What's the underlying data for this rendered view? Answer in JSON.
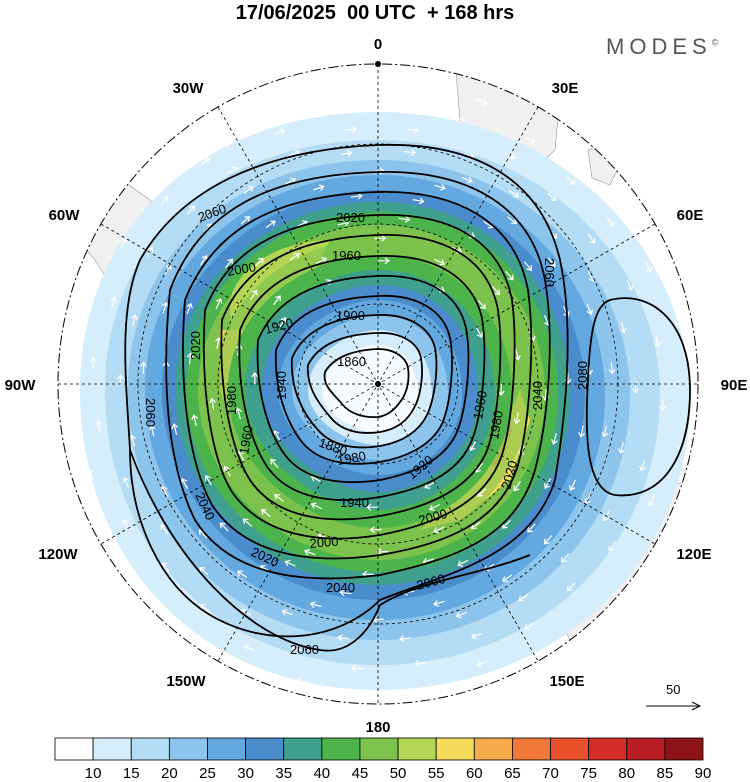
{
  "title": "17/06/2025  00 UTC  + 168 hrs",
  "brand": "MODES",
  "brand_mark": "©",
  "longitude_labels": {
    "n0": "0",
    "e30": "30E",
    "e60": "60E",
    "e90": "90E",
    "e120": "120E",
    "e150": "150E",
    "s180": "180",
    "w150": "150W",
    "w120": "120W",
    "w90": "90W",
    "w60": "60W",
    "w30": "30W"
  },
  "contour_labels": [
    "1860",
    "1880",
    "1900",
    "1920",
    "1920",
    "1940",
    "1940",
    "1960",
    "1960",
    "1960",
    "1980",
    "1980",
    "1980",
    "2000",
    "2000",
    "2000",
    "2020",
    "2020",
    "2020",
    "2020",
    "2040",
    "2040",
    "2040",
    "2060",
    "2060",
    "2060",
    "2060",
    "2060",
    "2080"
  ],
  "vector_reference": "50",
  "colorbar": {
    "ticks": [
      "10",
      "15",
      "20",
      "25",
      "30",
      "35",
      "40",
      "45",
      "50",
      "55",
      "60",
      "65",
      "70",
      "75",
      "80",
      "85",
      "90"
    ],
    "colors": [
      "#ffffff",
      "#d6eefb",
      "#b4dcf4",
      "#8cc4ec",
      "#64a8e0",
      "#4a8ccc",
      "#3fa08e",
      "#4cb44a",
      "#7cc24c",
      "#b4d654",
      "#f4dc5a",
      "#f4ac4c",
      "#f07838",
      "#e8502c",
      "#d42c28",
      "#b81c24",
      "#8c1416"
    ]
  }
}
